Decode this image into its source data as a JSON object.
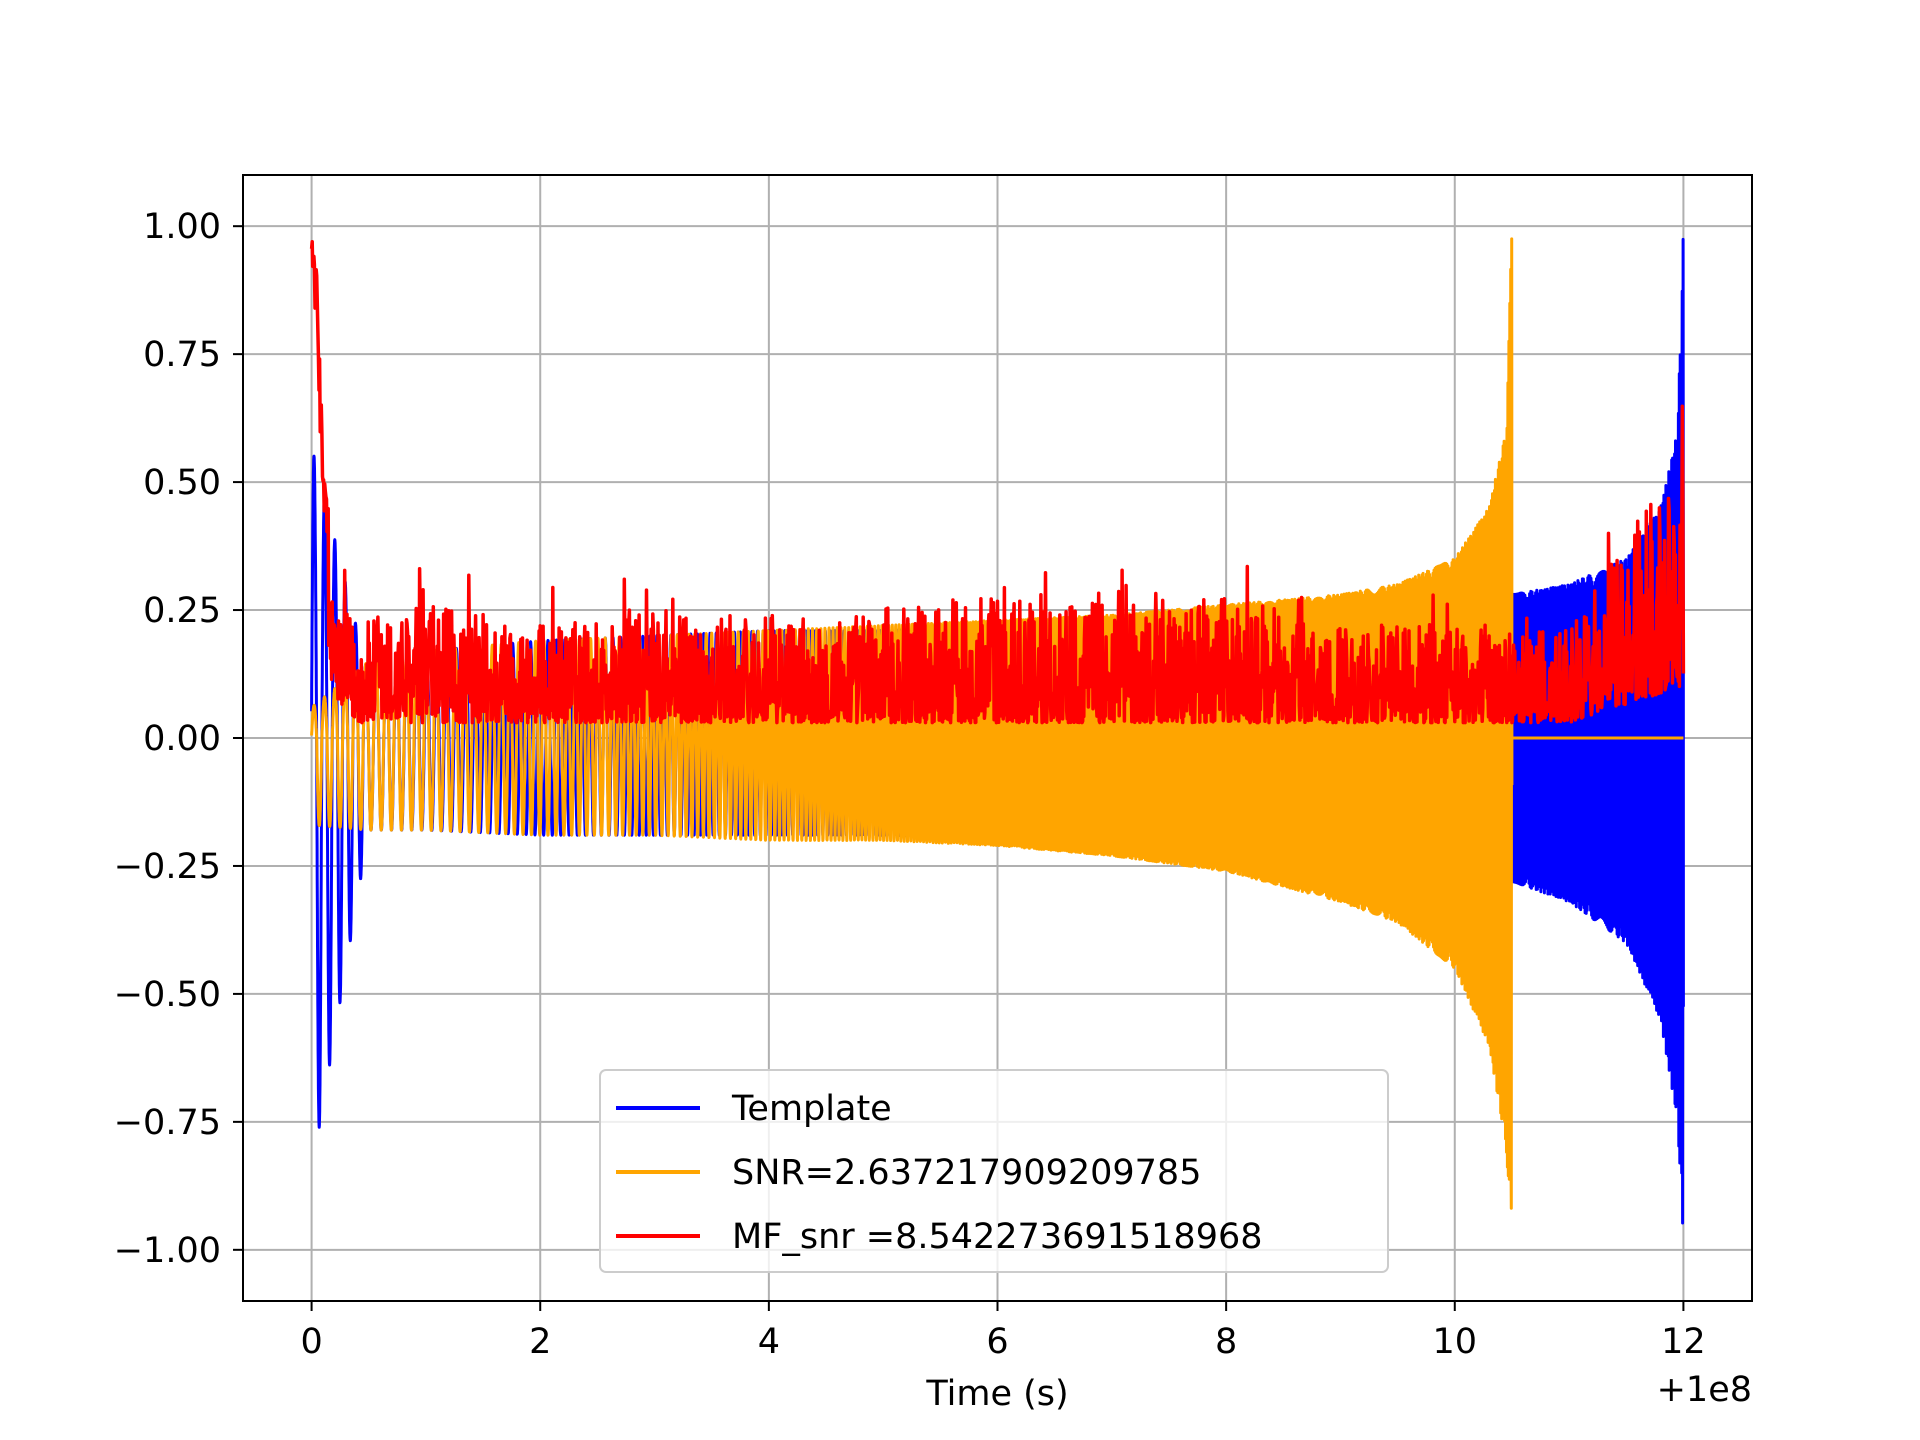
{
  "chart_data": {
    "type": "line",
    "title": "",
    "xlabel": "Time (s)",
    "ylabel": "",
    "x_offset_label": "+1e8",
    "xlim": [
      -0.6,
      12.6
    ],
    "ylim": [
      -1.1,
      1.1
    ],
    "xticks": [
      0,
      2,
      4,
      6,
      8,
      10,
      12
    ],
    "xtick_labels": [
      "0",
      "2",
      "4",
      "6",
      "8",
      "10",
      "12"
    ],
    "yticks": [
      1.0,
      0.75,
      0.5,
      0.25,
      0.0,
      -0.25,
      -0.5,
      -0.75,
      -1.0
    ],
    "ytick_labels": [
      "1.00",
      "0.75",
      "0.50",
      "0.25",
      "0.00",
      "−0.25",
      "−0.50",
      "−0.75",
      "−1.00"
    ],
    "grid": true,
    "legend_position": "lower-center",
    "series": [
      {
        "name": "Template",
        "color": "#0000ff",
        "x": [
          0,
          0.5,
          1,
          2,
          3,
          4,
          5,
          6,
          7,
          8,
          9,
          10,
          10.5,
          11,
          11.5,
          11.8,
          11.95,
          12.0
        ],
        "upper": [
          0.57,
          0.12,
          0.17,
          0.19,
          0.2,
          0.21,
          0.21,
          0.22,
          0.23,
          0.24,
          0.25,
          0.27,
          0.28,
          0.3,
          0.35,
          0.45,
          0.6,
          1.0
        ],
        "lower": [
          -0.85,
          -0.18,
          -0.18,
          -0.19,
          -0.19,
          -0.19,
          -0.19,
          -0.2,
          -0.21,
          -0.23,
          -0.24,
          -0.26,
          -0.28,
          -0.32,
          -0.4,
          -0.55,
          -0.75,
          -1.0
        ]
      },
      {
        "name": "SNR=2.637217909209785",
        "color": "#ffa500",
        "x": [
          0,
          0.5,
          1,
          2,
          3,
          4,
          5,
          6,
          7,
          8,
          9,
          9.5,
          10,
          10.3,
          10.45,
          10.5
        ],
        "upper": [
          0.06,
          0.15,
          0.17,
          0.19,
          0.2,
          0.21,
          0.22,
          0.23,
          0.24,
          0.26,
          0.28,
          0.3,
          0.35,
          0.45,
          0.6,
          1.0
        ],
        "lower": [
          -0.17,
          -0.18,
          -0.18,
          -0.19,
          -0.19,
          -0.2,
          -0.2,
          -0.21,
          -0.23,
          -0.26,
          -0.32,
          -0.36,
          -0.45,
          -0.6,
          -0.8,
          -1.01
        ]
      },
      {
        "name": "MF_snr =8.542273691518968",
        "color": "#ff0000",
        "x": [
          0,
          0.05,
          0.1,
          0.2,
          0.4,
          1,
          2,
          3,
          4,
          5,
          6,
          7,
          8,
          9,
          10,
          11,
          12
        ],
        "peak": [
          1.0,
          0.9,
          0.55,
          0.35,
          0.3,
          0.35,
          0.3,
          0.33,
          0.32,
          0.34,
          0.4,
          0.36,
          0.37,
          0.3,
          0.3,
          0.28,
          0.75
        ],
        "baseline": [
          0.85,
          0.4,
          0.2,
          0.08,
          0.03,
          0.03,
          0.03,
          0.03,
          0.03,
          0.03,
          0.03,
          0.03,
          0.03,
          0.03,
          0.03,
          0.03,
          0.1
        ]
      }
    ]
  }
}
